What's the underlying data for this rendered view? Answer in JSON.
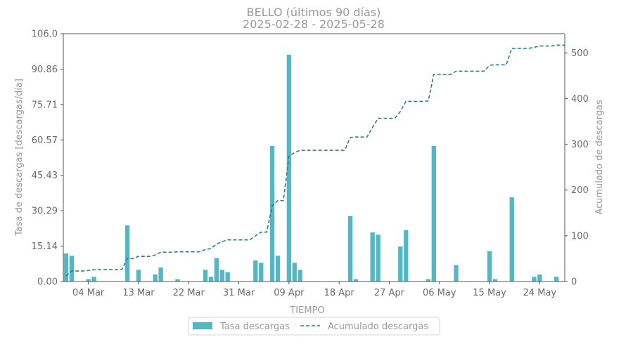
{
  "chart_data": {
    "type": "bar",
    "title": "BELLO (últimos 90 días)",
    "subtitle": "2025-02-28  -  2025-05-28",
    "xlabel": "TIEMPO",
    "ylabel_left": "Tasa de descargas [descargas/día]",
    "ylabel_right": "Acumulado de descargas",
    "ylim_left": [
      0,
      106.0
    ],
    "ylim_right": [
      0,
      542
    ],
    "xlim_days": [
      -0.5,
      89.5
    ],
    "yticks_left": [
      "0.00",
      "15.14",
      "30.29",
      "45.43",
      "60.57",
      "75.71",
      "90.86",
      "106.0"
    ],
    "yticks_left_values": [
      0,
      15.14,
      30.29,
      45.43,
      60.57,
      75.71,
      90.86,
      106.0
    ],
    "yticks_right": [
      0,
      100,
      200,
      300,
      400,
      500
    ],
    "xticks": [
      {
        "label": "04 Mar",
        "day": 4
      },
      {
        "label": "13 Mar",
        "day": 13
      },
      {
        "label": "22 Mar",
        "day": 22
      },
      {
        "label": "31 Mar",
        "day": 31
      },
      {
        "label": "09 Apr",
        "day": 40
      },
      {
        "label": "18 Apr",
        "day": 49
      },
      {
        "label": "27 Apr",
        "day": 58
      },
      {
        "label": "06 May",
        "day": 67
      },
      {
        "label": "15 May",
        "day": 76
      },
      {
        "label": "24 May",
        "day": 85
      }
    ],
    "legend": [
      "Tasa descargas",
      "Acumulado descargas"
    ],
    "legend_position": "bottom-center",
    "colors": {
      "bars": "#56b7c4",
      "cumulative": "#2e7d8f",
      "axis": "#555555"
    },
    "series": [
      {
        "name": "Tasa descargas",
        "type": "bar",
        "points": [
          [
            0,
            12
          ],
          [
            1,
            11
          ],
          [
            4,
            1
          ],
          [
            5,
            2
          ],
          [
            11,
            24
          ],
          [
            13,
            5
          ],
          [
            16,
            3
          ],
          [
            17,
            6
          ],
          [
            20,
            1
          ],
          [
            25,
            5
          ],
          [
            26,
            2
          ],
          [
            27,
            10
          ],
          [
            28,
            5
          ],
          [
            29,
            4
          ],
          [
            34,
            9
          ],
          [
            35,
            8
          ],
          [
            37,
            58
          ],
          [
            38,
            11
          ],
          [
            40,
            97
          ],
          [
            41,
            8
          ],
          [
            42,
            5
          ],
          [
            51,
            28
          ],
          [
            52,
            1
          ],
          [
            55,
            21
          ],
          [
            56,
            20
          ],
          [
            60,
            15
          ],
          [
            61,
            22
          ],
          [
            65,
            1
          ],
          [
            66,
            58
          ],
          [
            70,
            7
          ],
          [
            76,
            13
          ],
          [
            77,
            1
          ],
          [
            80,
            36
          ],
          [
            84,
            2
          ],
          [
            85,
            3
          ],
          [
            88,
            2
          ]
        ]
      },
      {
        "name": "Acumulado descargas",
        "type": "line",
        "points": [
          [
            0,
            12
          ],
          [
            1,
            23
          ],
          [
            3,
            23
          ],
          [
            4,
            24
          ],
          [
            5,
            26
          ],
          [
            10,
            26
          ],
          [
            11,
            50
          ],
          [
            12,
            50
          ],
          [
            13,
            55
          ],
          [
            15,
            55
          ],
          [
            16,
            58
          ],
          [
            17,
            64
          ],
          [
            19,
            64
          ],
          [
            20,
            65
          ],
          [
            24,
            65
          ],
          [
            25,
            70
          ],
          [
            26,
            72
          ],
          [
            27,
            82
          ],
          [
            28,
            87
          ],
          [
            29,
            91
          ],
          [
            33,
            91
          ],
          [
            34,
            100
          ],
          [
            35,
            108
          ],
          [
            36,
            108
          ],
          [
            37,
            166
          ],
          [
            38,
            177
          ],
          [
            39,
            177
          ],
          [
            40,
            274
          ],
          [
            41,
            282
          ],
          [
            42,
            287
          ],
          [
            50,
            287
          ],
          [
            51,
            315
          ],
          [
            52,
            316
          ],
          [
            54,
            316
          ],
          [
            55,
            337
          ],
          [
            56,
            357
          ],
          [
            59,
            357
          ],
          [
            60,
            372
          ],
          [
            61,
            394
          ],
          [
            64,
            394
          ],
          [
            65,
            395
          ],
          [
            66,
            453
          ],
          [
            69,
            453
          ],
          [
            70,
            460
          ],
          [
            75,
            460
          ],
          [
            76,
            473
          ],
          [
            77,
            474
          ],
          [
            79,
            474
          ],
          [
            80,
            510
          ],
          [
            83,
            510
          ],
          [
            84,
            512
          ],
          [
            85,
            515
          ],
          [
            87,
            515
          ],
          [
            88,
            517
          ],
          [
            89.5,
            517
          ]
        ]
      }
    ]
  }
}
